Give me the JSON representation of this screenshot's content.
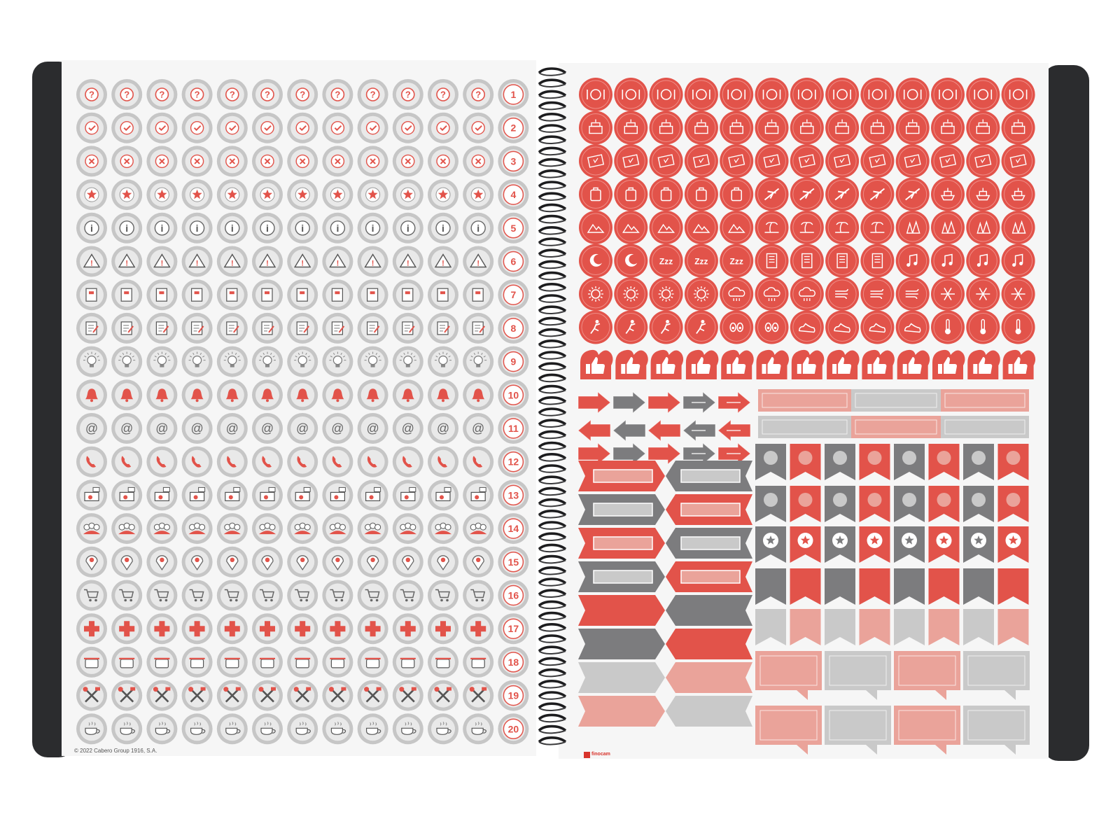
{
  "left_page": {
    "grid": {
      "columns": 13,
      "rows": 20
    },
    "circle_fill": "#c6c6c6",
    "circle_inner": "#e9e9e9",
    "accent": "#e2534a",
    "row_icons": [
      "question-icon",
      "check-icon",
      "cross-icon",
      "star-icon",
      "info-icon",
      "warning-icon",
      "book-icon",
      "note-icon",
      "lightbulb-icon",
      "bell-icon",
      "at-sign-icon",
      "phone-icon",
      "laptop-chat-icon",
      "group-icon",
      "location-pin-icon",
      "shopping-cart-icon",
      "medical-cross-icon",
      "cooking-pot-icon",
      "tools-icon",
      "coffee-cup-icon"
    ],
    "row_numbers": [
      "1",
      "2",
      "3",
      "4",
      "5",
      "6",
      "7",
      "8",
      "9",
      "10",
      "11",
      "12",
      "13",
      "14",
      "15",
      "16",
      "17",
      "18",
      "19",
      "20"
    ],
    "copyright": "© 2022 Cabero Group 1916, S.A."
  },
  "right_page": {
    "circle_fill": "#e2534a",
    "circle_ring": "#ef8c86",
    "grey": "#7c7c7e",
    "light_grey": "#c9c9c9",
    "salmon": "#eaa39a",
    "circle_rows": [
      "cutlery-icon",
      "cake-icon",
      "ticket-icon",
      "luggage-plane-icon",
      "mountain-tree-icon",
      "moon-sleep-building-music-icon",
      "sun-cloud-wind-snow-icon",
      "exercise-eye-shoe-thermometer-icon"
    ],
    "thumbs_up": "thumbs-up-icon",
    "brand": "finocam"
  }
}
